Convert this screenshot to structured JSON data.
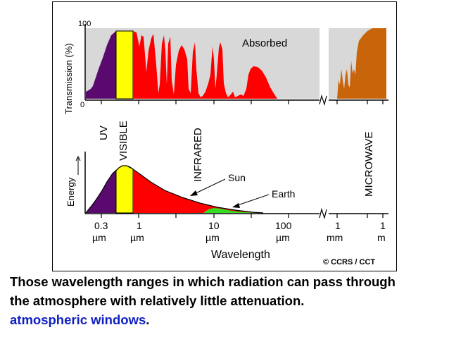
{
  "diagram": {
    "top_panel": {
      "y_axis_label": "Transmission (%)",
      "y_tick_top": "100",
      "y_tick_bottom": "0",
      "absorbed_label": "Absorbed"
    },
    "band_labels": {
      "uv": "UV",
      "visible": "VISIBLE",
      "infrared": "INFRARED",
      "microwave": "MICROWAVE"
    },
    "bottom_panel": {
      "y_axis_label": "Energy",
      "sun_label": "Sun",
      "earth_label": "Earth"
    },
    "x_ticks": [
      {
        "value": "0.3",
        "unit": "µm"
      },
      {
        "value": "1",
        "unit": "µm"
      },
      {
        "value": "10",
        "unit": "µm"
      },
      {
        "value": "100",
        "unit": "µm"
      },
      {
        "value": "1",
        "unit": "mm"
      },
      {
        "value": "1",
        "unit": "m"
      }
    ],
    "x_axis_label": "Wavelength",
    "credit": "© CCRS / CCT",
    "colors": {
      "uv": "#5a0a6e",
      "visible": "#ffff00",
      "infrared": "#ff0000",
      "microwave": "#c8640a",
      "earth": "#33dd22",
      "absorbed_bg": "#d8d8d8"
    }
  },
  "caption": {
    "line1": "Those wavelength ranges in which radiation  can pass through",
    "line2": "the atmosphere with relatively little attenuation.",
    "line3": "atmospheric windows",
    "line3_suffix": "."
  }
}
